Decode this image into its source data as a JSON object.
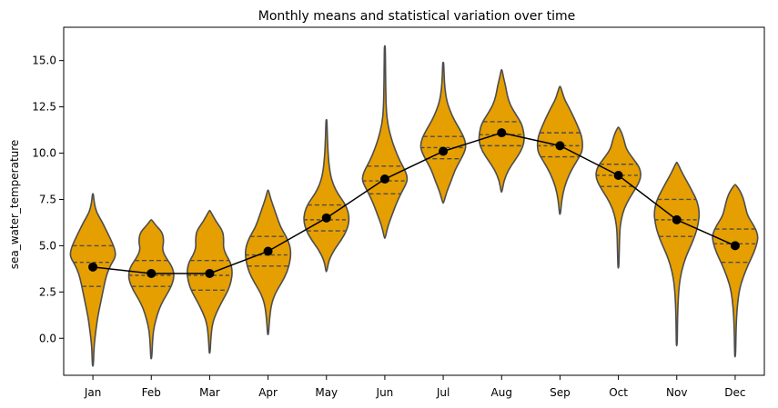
{
  "chart_data": {
    "type": "violin",
    "title": "Monthly means and statistical variation over time",
    "xlabel": "",
    "ylabel": "sea_water_temperature",
    "categories": [
      "Jan",
      "Feb",
      "Mar",
      "Apr",
      "May",
      "Jun",
      "Jul",
      "Aug",
      "Sep",
      "Oct",
      "Nov",
      "Dec"
    ],
    "ylim": [
      -2.0,
      16.8
    ],
    "yticks": [
      "0.0",
      "2.5",
      "5.0",
      "7.5",
      "10.0",
      "12.5",
      "15.0"
    ],
    "grid": false,
    "legend": "none",
    "violin_color": "#e69f00",
    "violin_edge_color": "#4d4d4d",
    "mean_line_color": "#000000",
    "means": [
      3.85,
      3.5,
      3.5,
      4.7,
      6.5,
      8.6,
      10.1,
      11.1,
      10.4,
      8.8,
      6.4,
      5.0
    ],
    "quartiles": [
      [
        2.8,
        4.1,
        5.0
      ],
      [
        2.8,
        3.4,
        4.2
      ],
      [
        2.6,
        3.4,
        4.2
      ],
      [
        3.9,
        4.5,
        5.5
      ],
      [
        5.8,
        6.4,
        7.2
      ],
      [
        7.8,
        8.5,
        9.3
      ],
      [
        9.7,
        10.3,
        10.9
      ],
      [
        10.4,
        11.0,
        11.7
      ],
      [
        9.8,
        10.4,
        11.1
      ],
      [
        8.2,
        8.8,
        9.4
      ],
      [
        5.5,
        6.4,
        7.5
      ],
      [
        4.1,
        5.1,
        5.9
      ]
    ],
    "extent": [
      [
        -1.5,
        7.8
      ],
      [
        -1.1,
        6.4
      ],
      [
        -0.8,
        6.9
      ],
      [
        0.2,
        8.0
      ],
      [
        3.6,
        11.8
      ],
      [
        5.4,
        15.8
      ],
      [
        7.3,
        14.9
      ],
      [
        7.9,
        14.5
      ],
      [
        6.7,
        13.6
      ],
      [
        3.8,
        11.4
      ],
      [
        -0.4,
        9.5
      ],
      [
        -1.0,
        8.3
      ]
    ],
    "densities": [
      [
        [
          -1.5,
          0.02
        ],
        [
          -0.5,
          0.05
        ],
        [
          0.0,
          0.09
        ],
        [
          0.6,
          0.15
        ],
        [
          1.2,
          0.22
        ],
        [
          1.8,
          0.32
        ],
        [
          2.4,
          0.42
        ],
        [
          3.0,
          0.52
        ],
        [
          3.5,
          0.62
        ],
        [
          4.0,
          0.8
        ],
        [
          4.4,
          1.0
        ],
        [
          4.8,
          0.97
        ],
        [
          5.3,
          0.8
        ],
        [
          5.8,
          0.6
        ],
        [
          6.3,
          0.4
        ],
        [
          6.8,
          0.16
        ],
        [
          7.3,
          0.06
        ],
        [
          7.8,
          0.02
        ]
      ],
      [
        [
          -1.1,
          0.02
        ],
        [
          -0.3,
          0.05
        ],
        [
          0.4,
          0.09
        ],
        [
          1.0,
          0.2
        ],
        [
          1.6,
          0.35
        ],
        [
          2.1,
          0.55
        ],
        [
          2.6,
          0.8
        ],
        [
          3.1,
          0.97
        ],
        [
          3.5,
          1.0
        ],
        [
          3.9,
          0.9
        ],
        [
          4.4,
          0.62
        ],
        [
          4.8,
          0.48
        ],
        [
          5.2,
          0.55
        ],
        [
          5.7,
          0.5
        ],
        [
          6.1,
          0.2
        ],
        [
          6.4,
          0.02
        ]
      ],
      [
        [
          -0.8,
          0.02
        ],
        [
          0.0,
          0.05
        ],
        [
          0.8,
          0.12
        ],
        [
          1.4,
          0.3
        ],
        [
          2.0,
          0.55
        ],
        [
          2.6,
          0.82
        ],
        [
          3.1,
          0.95
        ],
        [
          3.6,
          1.0
        ],
        [
          4.1,
          0.92
        ],
        [
          4.5,
          0.72
        ],
        [
          4.9,
          0.6
        ],
        [
          5.3,
          0.62
        ],
        [
          5.8,
          0.58
        ],
        [
          6.3,
          0.28
        ],
        [
          6.9,
          0.02
        ]
      ],
      [
        [
          0.2,
          0.02
        ],
        [
          1.0,
          0.06
        ],
        [
          1.8,
          0.14
        ],
        [
          2.4,
          0.3
        ],
        [
          3.0,
          0.6
        ],
        [
          3.6,
          0.85
        ],
        [
          4.2,
          0.97
        ],
        [
          4.6,
          1.0
        ],
        [
          5.0,
          0.96
        ],
        [
          5.5,
          0.8
        ],
        [
          6.0,
          0.55
        ],
        [
          6.6,
          0.38
        ],
        [
          7.1,
          0.24
        ],
        [
          7.6,
          0.1
        ],
        [
          8.0,
          0.02
        ]
      ],
      [
        [
          3.6,
          0.02
        ],
        [
          4.2,
          0.1
        ],
        [
          4.8,
          0.35
        ],
        [
          5.3,
          0.65
        ],
        [
          5.8,
          0.88
        ],
        [
          6.3,
          1.0
        ],
        [
          6.8,
          0.97
        ],
        [
          7.3,
          0.8
        ],
        [
          7.8,
          0.5
        ],
        [
          8.3,
          0.3
        ],
        [
          8.8,
          0.18
        ],
        [
          9.5,
          0.1
        ],
        [
          10.5,
          0.05
        ],
        [
          11.8,
          0.02
        ]
      ],
      [
        [
          5.4,
          0.02
        ],
        [
          6.0,
          0.12
        ],
        [
          6.6,
          0.3
        ],
        [
          7.2,
          0.48
        ],
        [
          7.8,
          0.7
        ],
        [
          8.3,
          0.92
        ],
        [
          8.6,
          1.0
        ],
        [
          9.0,
          0.92
        ],
        [
          9.6,
          0.65
        ],
        [
          10.2,
          0.45
        ],
        [
          10.8,
          0.28
        ],
        [
          11.6,
          0.12
        ],
        [
          12.4,
          0.06
        ],
        [
          13.5,
          0.04
        ],
        [
          14.6,
          0.03
        ],
        [
          15.8,
          0.02
        ]
      ],
      [
        [
          7.3,
          0.02
        ],
        [
          7.9,
          0.15
        ],
        [
          8.5,
          0.35
        ],
        [
          9.1,
          0.52
        ],
        [
          9.6,
          0.75
        ],
        [
          10.1,
          0.95
        ],
        [
          10.4,
          1.0
        ],
        [
          10.8,
          0.93
        ],
        [
          11.3,
          0.72
        ],
        [
          11.8,
          0.48
        ],
        [
          12.3,
          0.3
        ],
        [
          12.8,
          0.16
        ],
        [
          13.5,
          0.07
        ],
        [
          14.2,
          0.04
        ],
        [
          14.9,
          0.02
        ]
      ],
      [
        [
          7.9,
          0.02
        ],
        [
          8.5,
          0.1
        ],
        [
          9.1,
          0.3
        ],
        [
          9.6,
          0.58
        ],
        [
          10.1,
          0.85
        ],
        [
          10.6,
          1.0
        ],
        [
          11.1,
          0.98
        ],
        [
          11.6,
          0.88
        ],
        [
          12.1,
          0.62
        ],
        [
          12.6,
          0.38
        ],
        [
          13.1,
          0.25
        ],
        [
          13.6,
          0.18
        ],
        [
          14.1,
          0.08
        ],
        [
          14.5,
          0.02
        ]
      ],
      [
        [
          6.7,
          0.02
        ],
        [
          7.5,
          0.08
        ],
        [
          8.2,
          0.2
        ],
        [
          8.9,
          0.42
        ],
        [
          9.5,
          0.7
        ],
        [
          10.0,
          0.95
        ],
        [
          10.4,
          1.0
        ],
        [
          10.9,
          0.96
        ],
        [
          11.4,
          0.8
        ],
        [
          11.9,
          0.62
        ],
        [
          12.4,
          0.42
        ],
        [
          12.9,
          0.2
        ],
        [
          13.3,
          0.1
        ],
        [
          13.6,
          0.02
        ]
      ],
      [
        [
          3.8,
          0.02
        ],
        [
          4.8,
          0.04
        ],
        [
          5.8,
          0.06
        ],
        [
          6.4,
          0.12
        ],
        [
          7.0,
          0.25
        ],
        [
          7.6,
          0.5
        ],
        [
          8.2,
          0.82
        ],
        [
          8.7,
          1.0
        ],
        [
          9.2,
          0.95
        ],
        [
          9.7,
          0.65
        ],
        [
          10.2,
          0.35
        ],
        [
          10.7,
          0.25
        ],
        [
          11.1,
          0.15
        ],
        [
          11.4,
          0.02
        ]
      ],
      [
        [
          -0.4,
          0.02
        ],
        [
          0.8,
          0.03
        ],
        [
          1.8,
          0.05
        ],
        [
          2.8,
          0.1
        ],
        [
          3.6,
          0.2
        ],
        [
          4.4,
          0.4
        ],
        [
          5.0,
          0.62
        ],
        [
          5.6,
          0.82
        ],
        [
          6.2,
          0.95
        ],
        [
          6.8,
          1.0
        ],
        [
          7.4,
          0.9
        ],
        [
          7.9,
          0.7
        ],
        [
          8.4,
          0.48
        ],
        [
          8.9,
          0.25
        ],
        [
          9.5,
          0.02
        ]
      ],
      [
        [
          -1.0,
          0.02
        ],
        [
          0.5,
          0.04
        ],
        [
          1.6,
          0.08
        ],
        [
          2.6,
          0.18
        ],
        [
          3.3,
          0.35
        ],
        [
          4.0,
          0.58
        ],
        [
          4.6,
          0.82
        ],
        [
          5.2,
          0.98
        ],
        [
          5.6,
          1.0
        ],
        [
          6.1,
          0.82
        ],
        [
          6.6,
          0.55
        ],
        [
          7.1,
          0.45
        ],
        [
          7.6,
          0.35
        ],
        [
          8.0,
          0.2
        ],
        [
          8.3,
          0.02
        ]
      ]
    ]
  }
}
